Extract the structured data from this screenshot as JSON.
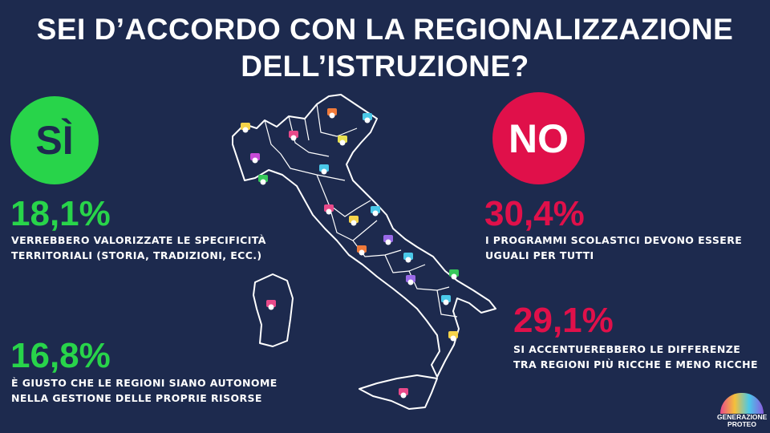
{
  "title_line1": "SEI D’ACCORDO CON LA REGIONALIZZAZIONE",
  "title_line2": "DELL’ISTRUZIONE?",
  "yes": {
    "label": "SÌ",
    "color": "#28d44a",
    "items": [
      {
        "pct": "18,1%",
        "line1": "VERREBBERO VALORIZZATE LE SPECIFICITÀ",
        "line2": "TERRITORIALI (STORIA, TRADIZIONI, ECC.)"
      },
      {
        "pct": "16,8%",
        "line1": "È GIUSTO CHE LE REGIONI SIANO AUTONOME",
        "line2": "NELLA GESTIONE DELLE PROPRIE RISORSE"
      }
    ]
  },
  "no": {
    "label": "NO",
    "color": "#e0104a",
    "items": [
      {
        "pct": "30,4%",
        "line1": "I PROGRAMMI SCOLASTICI DEVONO ESSERE",
        "line2": "UGUALI PER TUTTI"
      },
      {
        "pct": "29,1%",
        "line1": "SI ACCENTUEREBBERO LE DIFFERENZE",
        "line2": "TRA REGIONI PIÙ RICCHE E MENO RICCHE"
      }
    ]
  },
  "chart_data": {
    "type": "table",
    "categories": [
      "VERREBBERO VALORIZZATE LE SPECIFICITÀ TERRITORIALI (STORIA, TRADIZIONI, ECC.)",
      "È GIUSTO CHE LE REGIONI SIANO AUTONOME NELLA GESTIONE DELLE PROPRIE RISORSE",
      "I PROGRAMMI SCOLASTICI DEVONO ESSERE UGUALI PER TUTTI",
      "SI ACCENTUEREBBERO LE DIFFERENZE TRA REGIONI PIÙ RICCHE E MENO RICCHE"
    ],
    "groups": [
      "SÌ",
      "SÌ",
      "NO",
      "NO"
    ],
    "values": [
      18.1,
      16.8,
      30.4,
      29.1
    ],
    "title": "SEI D’ACCORDO CON LA REGIONALIZZAZIONE DELL’ISTRUZIONE?"
  },
  "map": {
    "icon_name": "student-avatar-icon",
    "avatar_colors": [
      "#f5d34a",
      "#e84a8a",
      "#c84ad8",
      "#4ac8e8",
      "#f07a3a",
      "#36c85a",
      "#9a6ae8",
      "#e8e050"
    ]
  },
  "logo": {
    "line1": "GENERAZIONE",
    "line2": "PROTEO",
    "icon_name": "colosseum-logo-icon"
  }
}
